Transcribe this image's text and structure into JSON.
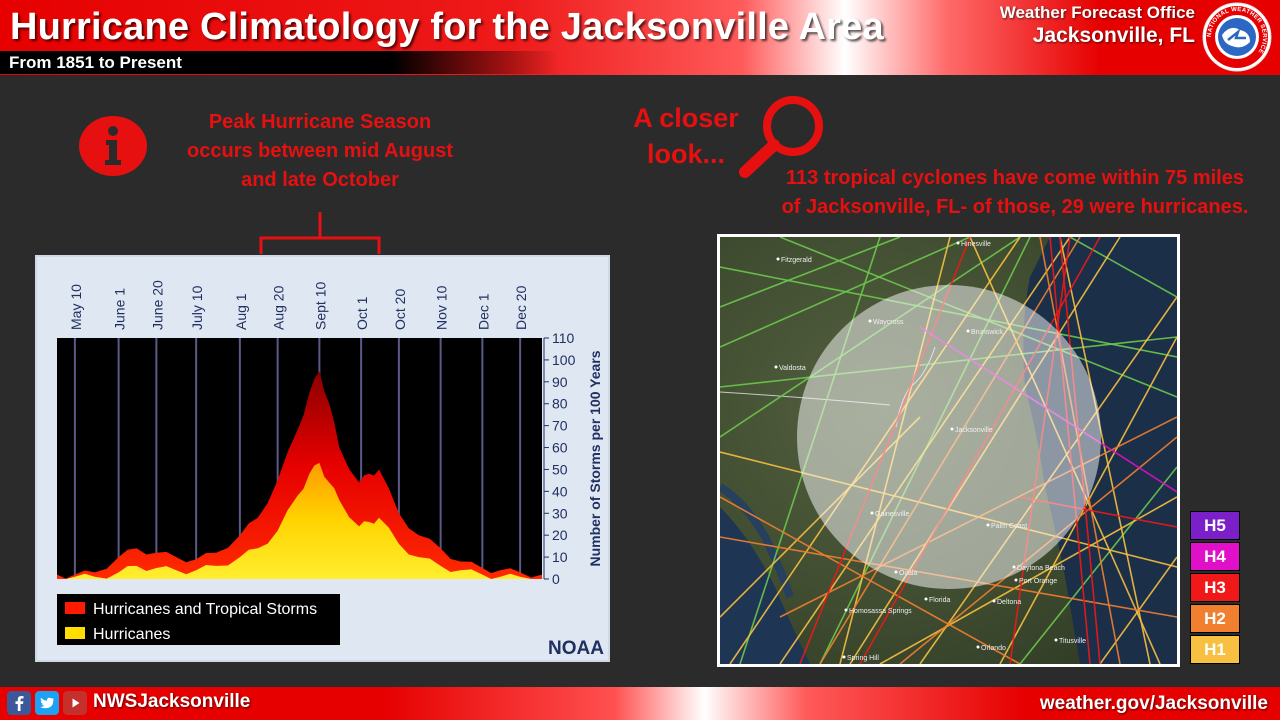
{
  "header": {
    "title": "Hurricane Climatology for the Jacksonville Area",
    "subtitle": "From 1851 to Present",
    "office_line1": "Weather Forecast Office",
    "office_line2": "Jacksonville, FL",
    "logo_icon": "nws-logo-icon",
    "logo_text": "NATIONAL WEATHER SERVICE"
  },
  "info": {
    "icon": "info-icon",
    "peak_lines": [
      "Peak Hurricane Season",
      "occurs between mid August",
      "and late October"
    ]
  },
  "closer": {
    "lines": [
      "A closer",
      "look..."
    ],
    "icon": "magnifier-icon",
    "cyclone_lines": [
      "113 tropical cyclones have come within 75 miles",
      "of Jacksonville, FL- of those, 29 were hurricanes."
    ]
  },
  "chart_data": {
    "type": "area",
    "x_ticks": [
      "May 10",
      "June 1",
      "June 20",
      "July 10",
      "Aug 1",
      "Aug 20",
      "Sept 10",
      "Oct 1",
      "Oct 20",
      "Nov 10",
      "Dec 1",
      "Dec 20"
    ],
    "ylabel": "Number of Storms per 100 Years",
    "y_ticks": [
      0,
      10,
      20,
      30,
      40,
      50,
      60,
      70,
      80,
      90,
      100,
      110
    ],
    "ylim": [
      0,
      110
    ],
    "x_start": "May 1",
    "x_end": "Dec 31",
    "legend_position": "bottom-left",
    "credit": "NOAA",
    "colors": {
      "plot_bg": "#000000",
      "storms": "#ff1a00",
      "hurricanes": "#ffdd00",
      "gridline": "#5a5a8a"
    },
    "series": [
      {
        "name": "Hurricanes and Tropical Storms",
        "x": [
          "May 1",
          "May 10",
          "May 20",
          "June 1",
          "June 10",
          "June 20",
          "June 30",
          "July 10",
          "July 20",
          "Aug 1",
          "Aug 10",
          "Aug 20",
          "Aug 30",
          "Sept 5",
          "Sept 10",
          "Sept 15",
          "Sept 20",
          "Sept 30",
          "Oct 5",
          "Oct 10",
          "Oct 20",
          "Oct 30",
          "Nov 10",
          "Nov 20",
          "Dec 1",
          "Dec 10",
          "Dec 20",
          "Dec 31"
        ],
        "values": [
          2,
          2,
          3,
          10,
          14,
          12,
          10,
          9,
          12,
          20,
          28,
          45,
          68,
          85,
          95,
          80,
          60,
          44,
          48,
          50,
          30,
          20,
          14,
          8,
          5,
          4,
          3,
          2
        ]
      },
      {
        "name": "Hurricanes",
        "x": [
          "May 1",
          "May 10",
          "May 20",
          "June 1",
          "June 10",
          "June 20",
          "June 30",
          "July 10",
          "July 20",
          "Aug 1",
          "Aug 10",
          "Aug 20",
          "Aug 30",
          "Sept 5",
          "Sept 10",
          "Sept 15",
          "Sept 20",
          "Sept 30",
          "Oct 5",
          "Oct 10",
          "Oct 20",
          "Oct 30",
          "Nov 10",
          "Nov 20",
          "Dec 1",
          "Dec 10",
          "Dec 20",
          "Dec 31"
        ],
        "values": [
          0,
          1,
          1,
          3,
          6,
          5,
          4,
          4,
          6,
          10,
          14,
          22,
          38,
          48,
          53,
          44,
          36,
          24,
          26,
          28,
          16,
          10,
          6,
          4,
          2,
          1,
          1,
          0
        ]
      }
    ]
  },
  "map": {
    "places": [
      "Hinesville",
      "Fitzgerald",
      "Waycross",
      "Brunswick",
      "Valdosta",
      "Jacksonville",
      "Gainesville",
      "Palm Coast",
      "Daytona Beach",
      "Port Orange",
      "Deltona",
      "Ocala",
      "Florida",
      "Homosassa Springs",
      "Orlando",
      "Titusville",
      "Spring Hill"
    ]
  },
  "categories": [
    {
      "label": "H5",
      "color": "#7b1fc8"
    },
    {
      "label": "H4",
      "color": "#e010c8"
    },
    {
      "label": "H3",
      "color": "#f01818"
    },
    {
      "label": "H2",
      "color": "#f08030"
    },
    {
      "label": "H1",
      "color": "#f8c040"
    }
  ],
  "footer": {
    "icons": [
      "facebook-icon",
      "twitter-icon",
      "youtube-icon"
    ],
    "handle": "NWSJacksonville",
    "website": "weather.gov/Jacksonville"
  }
}
